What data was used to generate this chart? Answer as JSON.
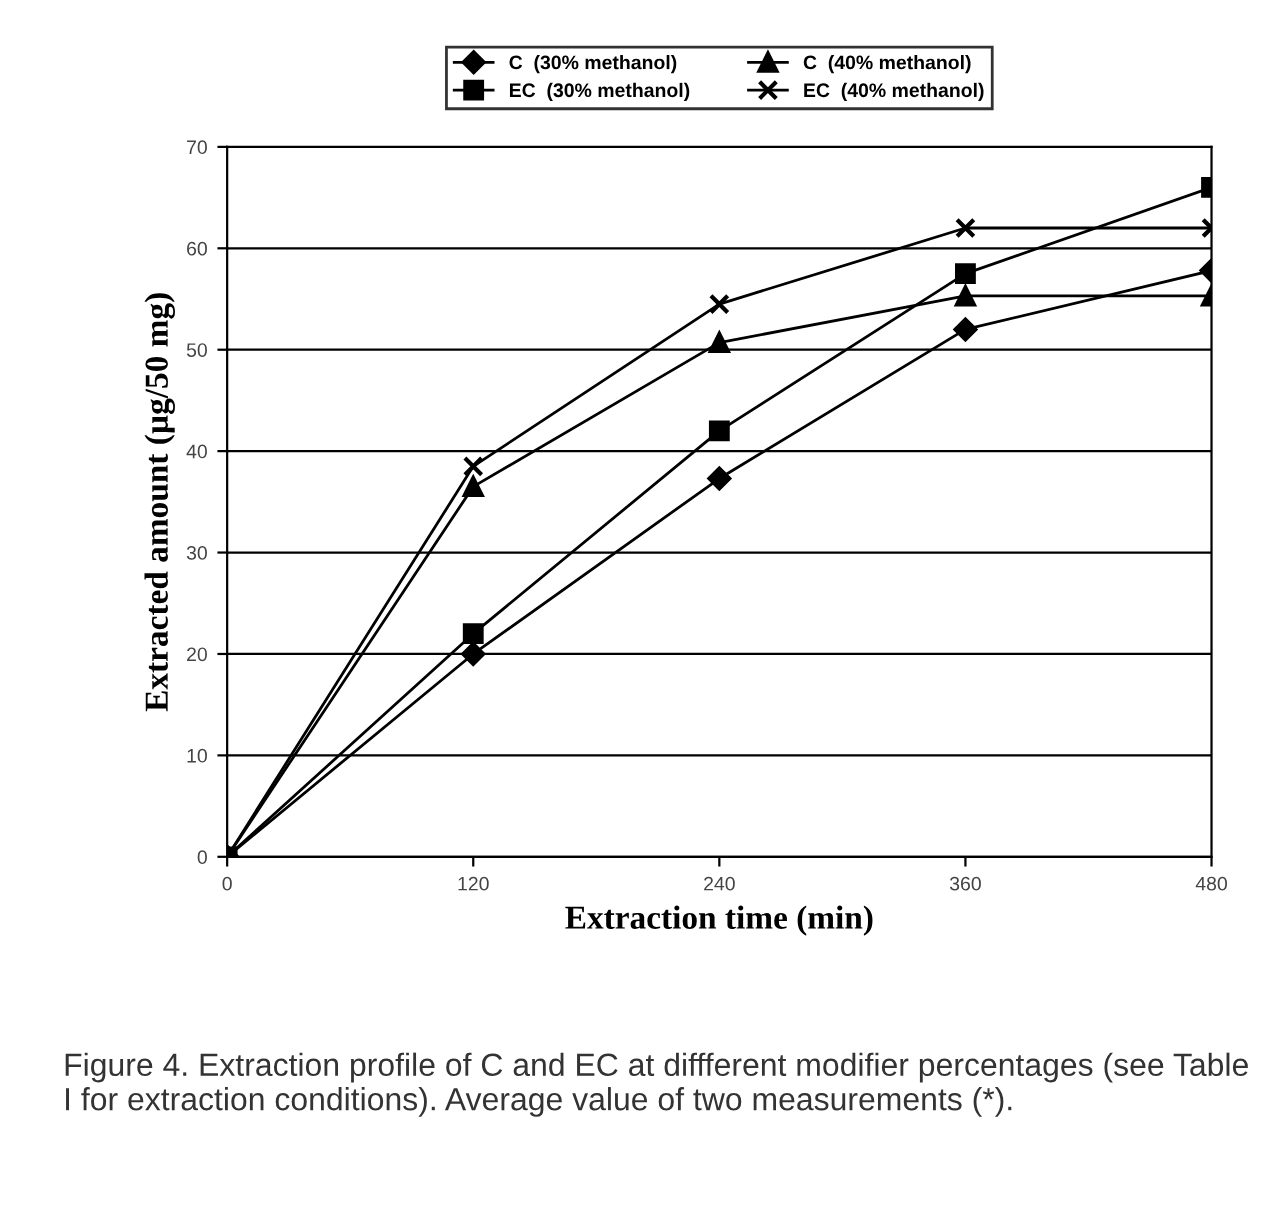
{
  "chart_data": {
    "type": "line",
    "xlabel": "Extraction time (min)",
    "ylabel": "Extracted amount (µg/50 mg)",
    "x": [
      0,
      120,
      240,
      360,
      480
    ],
    "series": [
      {
        "name": "C  (30% methanol)",
        "color": "#000000",
        "marker": "diamond",
        "values": [
          0,
          20,
          37.3,
          52,
          57.8
        ]
      },
      {
        "name": "EC  (30% methanol)",
        "color": "#000000",
        "marker": "square",
        "values": [
          0,
          22,
          42,
          57.5,
          66
        ]
      },
      {
        "name": "C  (40% methanol)",
        "color": "#000000",
        "marker": "triangle",
        "values": [
          0,
          36.5,
          50.7,
          55.3,
          55.3
        ]
      },
      {
        "name": "EC  (40% methanol)",
        "color": "#000000",
        "marker": "cross",
        "values": [
          0,
          38.5,
          54.5,
          62,
          62
        ]
      }
    ],
    "xlim": [
      0,
      480
    ],
    "xticks": [
      0,
      120,
      240,
      360,
      480
    ],
    "ylim": [
      0,
      70
    ],
    "yticks": [
      0,
      10,
      20,
      30,
      40,
      50,
      60,
      70
    ],
    "grid": "y",
    "legend": "top",
    "line_style": "solid",
    "annotations": [
      "Figure 4. Extraction profile of C and EC at diffferent modifier percentages (see Table I for extraction conditions). Average value of two measurements (*)."
    ]
  }
}
